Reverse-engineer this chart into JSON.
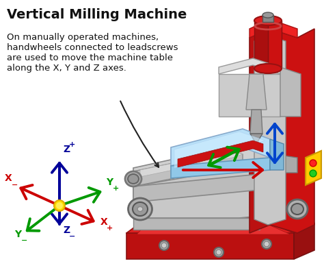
{
  "title": "Vertical Milling Machine",
  "description_lines": [
    "On manually operated machines,",
    "handwheels connected to leadscrews",
    "are used to move the machine table",
    "along the X, Y and Z axes."
  ],
  "bg_color": "#ffffff",
  "title_fontsize": 14,
  "desc_fontsize": 9.5,
  "axis_colors": {
    "X": "#cc0000",
    "Y": "#009900",
    "Z": "#000099"
  },
  "machine_colors": {
    "red_body": "#cc1111",
    "dark_red": "#991111",
    "red_top": "#ee2222",
    "silver": "#aaaaaa",
    "light_silver": "#cccccc",
    "mid_silver": "#bbbbbb",
    "dark_gray": "#555555",
    "light_blue": "#b8e0f8",
    "yellow": "#ffcc00",
    "black": "#111111",
    "chrome": "#c8c8c8",
    "dark_chrome": "#888888"
  }
}
